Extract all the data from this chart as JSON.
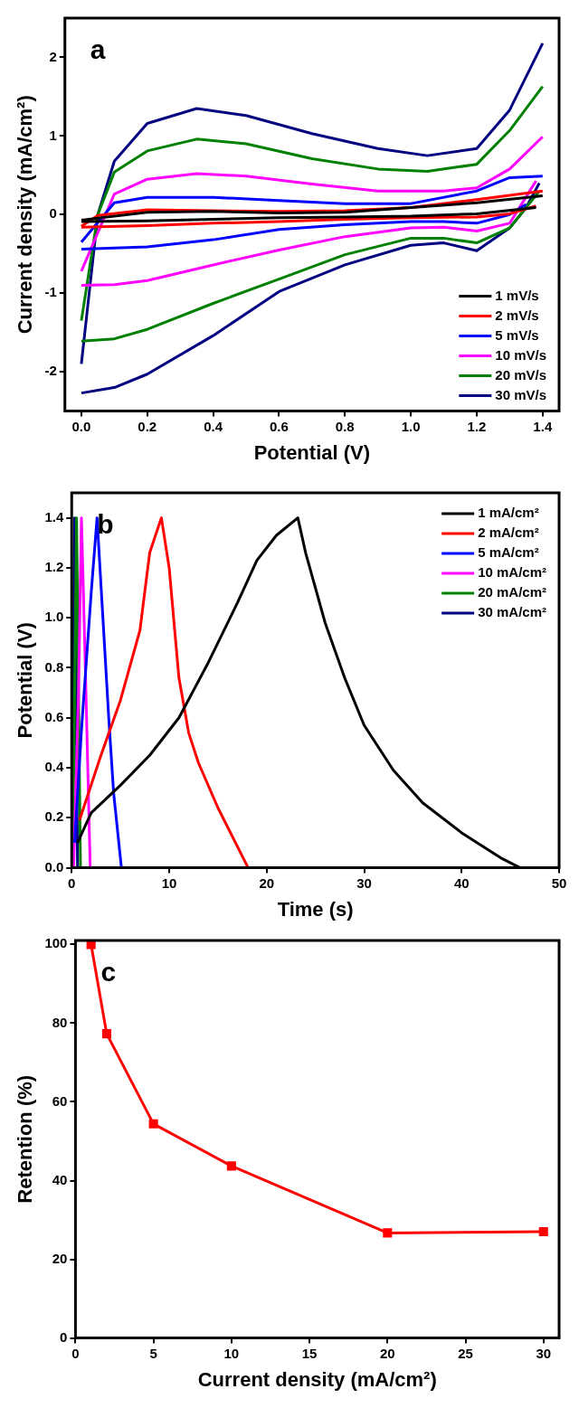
{
  "chart_data": [
    {
      "type": "line",
      "annotations": [
        "a"
      ],
      "xlabel": "Potential (V)",
      "ylabel": "Current density (mA/cm²)",
      "xlim": [
        -0.05,
        1.45
      ],
      "ylim": [
        -2.5,
        2.5
      ],
      "xticks": [
        {
          "value": 0,
          "label": "0.0"
        },
        0.2,
        0.4,
        0.6,
        0.8,
        {
          "value": 1,
          "label": "1.0"
        },
        1.2,
        1.4
      ],
      "yticks": [
        -2,
        -1,
        0,
        1,
        2
      ],
      "grid": false,
      "legend": "bottom right",
      "marker": "none",
      "line_style": "solid",
      "series": [
        {
          "name": "1 mV/s",
          "color": "#000000",
          "x": [
            0,
            0.2,
            0.4,
            0.6,
            0.8,
            1.0,
            1.2,
            1.4
          ],
          "values": [
            -0.07,
            0.03,
            0.04,
            0.02,
            0.03,
            0.09,
            0.15,
            0.24
          ]
        },
        {
          "color": "#000000",
          "x": [
            0,
            0.2,
            0.4,
            0.6,
            0.8,
            1.0,
            1.2,
            1.38
          ],
          "values": [
            -0.09,
            -0.08,
            -0.06,
            -0.04,
            -0.03,
            -0.02,
            0.01,
            0.09
          ]
        },
        {
          "name": "2 mV/s",
          "color": "#ff0000",
          "x": [
            0,
            0.05,
            0.2,
            0.4,
            0.6,
            0.8,
            1.0,
            1.2,
            1.4
          ],
          "values": [
            -0.15,
            -0.01,
            0.06,
            0.05,
            0.04,
            0.05,
            0.09,
            0.19,
            0.3
          ]
        },
        {
          "color": "#ff0000",
          "x": [
            0,
            0.2,
            0.4,
            0.6,
            0.8,
            1.0,
            1.2,
            1.3,
            1.38
          ],
          "values": [
            -0.16,
            -0.14,
            -0.11,
            -0.09,
            -0.06,
            -0.04,
            -0.03,
            0.01,
            0.11
          ]
        },
        {
          "name": "5 mV/s",
          "color": "#0000ff",
          "x": [
            0,
            0.1,
            0.2,
            0.4,
            0.6,
            0.8,
            1.0,
            1.2,
            1.3,
            1.4
          ],
          "values": [
            -0.35,
            0.15,
            0.22,
            0.22,
            0.18,
            0.14,
            0.14,
            0.3,
            0.47,
            0.49
          ]
        },
        {
          "color": "#0000ff",
          "x": [
            0,
            0.2,
            0.4,
            0.6,
            0.8,
            1.0,
            1.1,
            1.2,
            1.3,
            1.35
          ],
          "values": [
            -0.44,
            -0.41,
            -0.32,
            -0.19,
            -0.13,
            -0.09,
            -0.09,
            -0.11,
            0,
            0.13
          ]
        },
        {
          "name": "10 mV/s",
          "color": "#ff00ff",
          "x": [
            0,
            0.1,
            0.2,
            0.35,
            0.5,
            0.7,
            0.9,
            1.1,
            1.2,
            1.3,
            1.4
          ],
          "values": [
            -0.72,
            0.26,
            0.45,
            0.52,
            0.49,
            0.39,
            0.3,
            0.3,
            0.34,
            0.58,
            0.99
          ]
        },
        {
          "color": "#ff00ff",
          "x": [
            0,
            0.1,
            0.2,
            0.4,
            0.6,
            0.8,
            1.0,
            1.1,
            1.2,
            1.3,
            1.38
          ],
          "values": [
            -0.9,
            -0.89,
            -0.84,
            -0.64,
            -0.45,
            -0.28,
            -0.17,
            -0.16,
            -0.21,
            -0.11,
            0.43
          ]
        },
        {
          "name": "20 mV/s",
          "color": "#008000",
          "x": [
            0,
            0.05,
            0.1,
            0.2,
            0.35,
            0.5,
            0.7,
            0.9,
            1.05,
            1.2,
            1.3,
            1.4
          ],
          "values": [
            -1.35,
            0,
            0.54,
            0.81,
            0.96,
            0.9,
            0.71,
            0.58,
            0.55,
            0.64,
            1.07,
            1.63
          ]
        },
        {
          "color": "#008000",
          "x": [
            0,
            0.1,
            0.2,
            0.4,
            0.6,
            0.8,
            1.0,
            1.1,
            1.2,
            1.3,
            1.35,
            1.39
          ],
          "values": [
            -1.61,
            -1.58,
            -1.46,
            -1.13,
            -0.82,
            -0.51,
            -0.3,
            -0.3,
            -0.36,
            -0.17,
            0.09,
            0.3
          ]
        },
        {
          "name": "30 mV/s",
          "color": "#000080",
          "x": [
            0,
            0.05,
            0.1,
            0.2,
            0.35,
            0.5,
            0.7,
            0.9,
            1.05,
            1.2,
            1.3,
            1.4
          ],
          "values": [
            -1.9,
            0,
            0.68,
            1.16,
            1.35,
            1.26,
            1.03,
            0.84,
            0.75,
            0.84,
            1.33,
            2.18
          ]
        },
        {
          "color": "#000080",
          "x": [
            0,
            0.1,
            0.2,
            0.4,
            0.6,
            0.8,
            1.0,
            1.1,
            1.2,
            1.3,
            1.35,
            1.39
          ],
          "values": [
            -2.27,
            -2.2,
            -2.03,
            -1.54,
            -0.98,
            -0.64,
            -0.39,
            -0.36,
            -0.46,
            -0.17,
            0.09,
            0.4
          ]
        }
      ]
    },
    {
      "type": "line",
      "annotations": [
        "b"
      ],
      "xlabel": "Time (s)",
      "ylabel": "Potential (V)",
      "xlim": [
        0,
        50
      ],
      "ylim": [
        0,
        1.5
      ],
      "xticks": [
        0,
        10,
        20,
        30,
        40,
        50
      ],
      "yticks": [
        {
          "value": 0,
          "label": "0.0"
        },
        0.2,
        0.4,
        0.6,
        0.8,
        {
          "value": 1,
          "label": "1.0"
        },
        1.2,
        1.4
      ],
      "grid": false,
      "legend": "top right",
      "marker": "none",
      "line_style": "solid",
      "series": [
        {
          "name": "1 mA/cm²",
          "color": "#000000",
          "x": [
            0.6,
            2,
            5,
            8,
            11,
            14,
            17,
            19,
            21,
            23.2,
            24,
            26,
            28,
            30,
            33,
            36,
            40,
            44,
            46
          ],
          "values": [
            0.1,
            0.22,
            0.33,
            0.45,
            0.6,
            0.82,
            1.06,
            1.23,
            1.33,
            1.4,
            1.26,
            0.98,
            0.76,
            0.57,
            0.39,
            0.26,
            0.14,
            0.04,
            0
          ]
        },
        {
          "name": "2 mA/cm²",
          "color": "#ff0000",
          "x": [
            0.8,
            3,
            5,
            7,
            8,
            9.2,
            10,
            11,
            12,
            13,
            15,
            18.1
          ],
          "values": [
            0.19,
            0.45,
            0.67,
            0.95,
            1.26,
            1.4,
            1.2,
            0.76,
            0.54,
            0.42,
            0.24,
            0
          ]
        },
        {
          "name": "5 mA/cm²",
          "color": "#0000ff",
          "x": [
            0.3,
            1,
            2,
            2.6,
            3.2,
            3.8,
            4.3,
            5.1
          ],
          "values": [
            0.1,
            0.55,
            1.1,
            1.4,
            1.0,
            0.6,
            0.3,
            0
          ]
        },
        {
          "name": "10 mA/cm²",
          "color": "#ff00ff",
          "x": [
            0.2,
            0.7,
            1.0,
            1.4,
            1.9
          ],
          "values": [
            0,
            0.7,
            1.4,
            0.8,
            0
          ]
        },
        {
          "name": "20 mA/cm²",
          "color": "#008000",
          "x": [
            0.1,
            0.5,
            0.9
          ],
          "values": [
            0,
            1.4,
            0
          ]
        },
        {
          "name": "30 mA/cm²",
          "color": "#000080",
          "x": [
            0,
            0.3,
            0.6
          ],
          "values": [
            0,
            1.4,
            0
          ]
        }
      ]
    },
    {
      "type": "line",
      "annotations": [
        "c"
      ],
      "xlabel": "Current density (mA/cm²)",
      "ylabel": "Retention (%)",
      "xlim": [
        0,
        31
      ],
      "ylim": [
        0,
        101
      ],
      "xticks": [
        0,
        5,
        10,
        15,
        20,
        25,
        30
      ],
      "yticks": [
        0,
        20,
        40,
        60,
        80,
        100
      ],
      "grid": false,
      "legend": false,
      "marker": "square",
      "line_style": "solid",
      "x": [
        1,
        2,
        5,
        10,
        20,
        30
      ],
      "series": [
        {
          "color": "#ff0000",
          "values": [
            100,
            77.3,
            54.4,
            43.7,
            26.7,
            27
          ]
        }
      ]
    }
  ]
}
